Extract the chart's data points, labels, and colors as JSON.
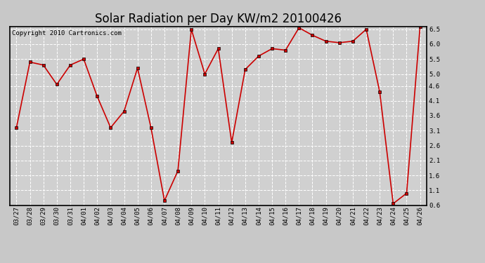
{
  "title": "Solar Radiation per Day KW/m2 20100426",
  "copyright_text": "Copyright 2010 Cartronics.com",
  "labels": [
    "03/27",
    "03/28",
    "03/29",
    "03/30",
    "03/31",
    "04/01",
    "04/02",
    "04/03",
    "04/04",
    "04/05",
    "04/06",
    "04/07",
    "04/08",
    "04/09",
    "04/10",
    "04/11",
    "04/12",
    "04/13",
    "04/14",
    "04/15",
    "04/16",
    "04/17",
    "04/18",
    "04/19",
    "04/20",
    "04/21",
    "04/22",
    "04/23",
    "04/24",
    "04/25",
    "04/26"
  ],
  "values": [
    3.2,
    5.4,
    5.3,
    4.65,
    5.3,
    5.5,
    4.25,
    3.2,
    3.75,
    5.2,
    3.2,
    0.75,
    1.75,
    6.5,
    5.0,
    5.85,
    2.7,
    5.15,
    5.6,
    5.85,
    5.8,
    6.55,
    6.3,
    6.1,
    6.05,
    6.1,
    6.5,
    4.4,
    0.65,
    1.0,
    6.6
  ],
  "line_color": "#cc0000",
  "marker": "s",
  "marker_size": 3,
  "background_color": "#c8c8c8",
  "plot_bg_color": "#d0d0d0",
  "grid_color": "#ffffff",
  "ylim": [
    0.6,
    6.6
  ],
  "yticks": [
    0.6,
    1.1,
    1.6,
    2.1,
    2.6,
    3.1,
    3.6,
    4.1,
    4.6,
    5.0,
    5.5,
    6.0,
    6.5
  ],
  "title_fontsize": 12,
  "tick_fontsize": 6.5,
  "copyright_fontsize": 6.5
}
